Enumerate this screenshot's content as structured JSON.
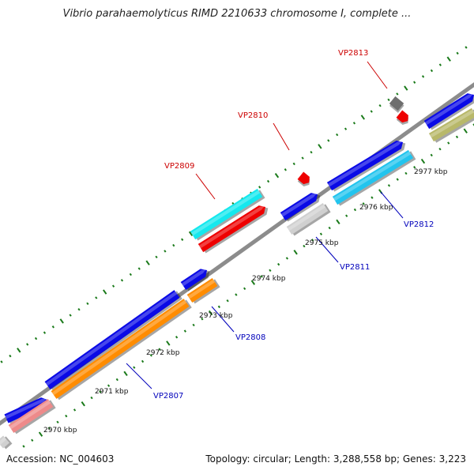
{
  "title": "Vibrio parahaemolyticus RIMD 2210633 chromosome I, complete ...",
  "footer": {
    "accession": "Accession: NC_004603",
    "summary": "Topology: circular; Length: 3,288,558 bp; Genes: 3,223"
  },
  "colors": {
    "backbone": "#8c8c8c",
    "tick": "#1a7a1a",
    "label_red": "#cc0000",
    "label_blue": "#0000bb",
    "blue": "#0a0ae6",
    "orange": "#ff8c00",
    "red": "#ee0000",
    "cyan": "#14e8ee",
    "light_blue": "#22c4ee",
    "pink": "#ee8a8a",
    "gray": "#d0d0d0",
    "dark_gray": "#6e6e6e",
    "olive": "#b8b86a"
  },
  "diagram": {
    "ticks": [
      {
        "label": "2970 kbp"
      },
      {
        "label": "2971 kbp"
      },
      {
        "label": "2972 kbp"
      },
      {
        "label": "2973 kbp"
      },
      {
        "label": "2974 kbp"
      },
      {
        "label": "2975 kbp"
      },
      {
        "label": "2976 kbp"
      },
      {
        "label": "2977 kbp"
      }
    ],
    "gene_labels": [
      {
        "id": "VP2807",
        "color": "blue"
      },
      {
        "id": "VP2808",
        "color": "blue"
      },
      {
        "id": "VP2809",
        "color": "red"
      },
      {
        "id": "VP2810",
        "color": "red"
      },
      {
        "id": "VP2811",
        "color": "blue"
      },
      {
        "id": "VP2812",
        "color": "blue"
      },
      {
        "id": "VP2813",
        "color": "red"
      }
    ]
  }
}
